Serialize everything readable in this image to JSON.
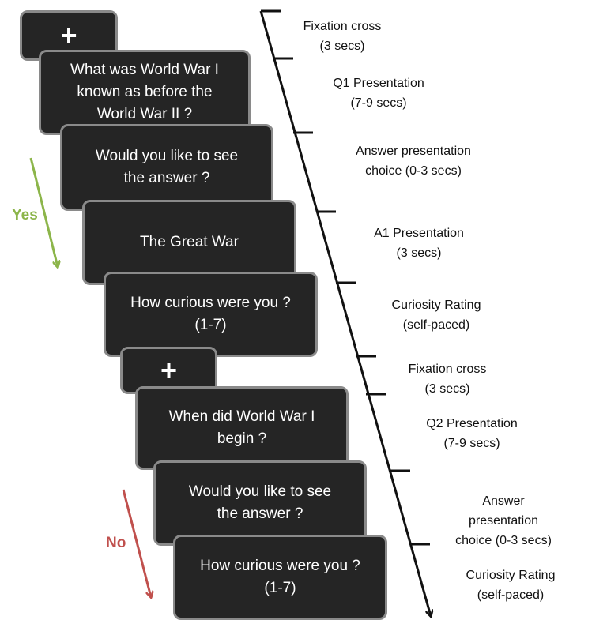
{
  "screens": {
    "fixation_1": "+",
    "q1": "What was World War I\nknown as before the\nWorld War II ?",
    "choice_1": "Would you like to see\nthe answer ?",
    "a1": "The Great War",
    "rating_1": "How curious were you ?\n(1-7)",
    "fixation_2": "+",
    "q2": "When did World War I\nbegin ?",
    "choice_2": "Would you like to see\nthe answer ?",
    "rating_2": "How curious were you ?\n(1-7)"
  },
  "phases": [
    "Fixation cross\n(3 secs)",
    "Q1 Presentation\n(7-9 secs)",
    "Answer presentation\nchoice (0-3 secs)",
    "A1 Presentation\n(3 secs)",
    "Curiosity Rating\n(self-paced)",
    "Fixation cross\n(3 secs)",
    "Q2 Presentation\n(7-9 secs)",
    "Answer presentation\nchoice (0-3 secs)",
    "Curiosity Rating\n(self-paced)"
  ],
  "branches": {
    "yes": "Yes",
    "no": "No"
  },
  "colors": {
    "screen_bg": "#252525",
    "screen_border": "#8a8a8a",
    "yes": "#8cb54a",
    "no": "#c0504d",
    "timeline": "#111111"
  }
}
